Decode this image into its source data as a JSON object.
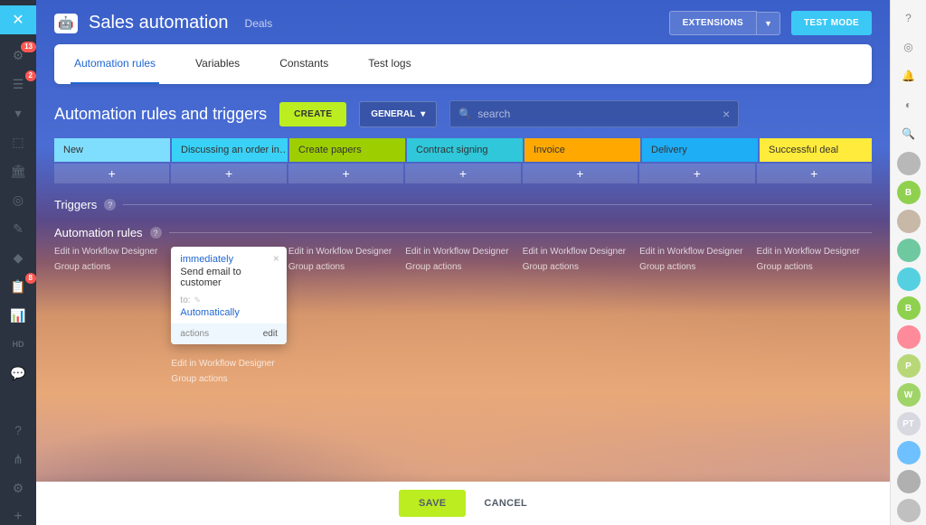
{
  "left_nav": {
    "badges": {
      "crm": "13",
      "tasks": "2",
      "reports": "8"
    }
  },
  "right_nav": {
    "avatars": [
      {
        "bg": "#b8b8b8",
        "label": ""
      },
      {
        "bg": "#8fd14f",
        "label": "B"
      },
      {
        "bg": "#c8b8a8",
        "label": ""
      },
      {
        "bg": "#6ec8a0",
        "label": ""
      },
      {
        "bg": "#55d0e0",
        "label": ""
      },
      {
        "bg": "#8fd14f",
        "label": "B"
      },
      {
        "bg": "#ff8a9a",
        "label": ""
      },
      {
        "bg": "#b8d878",
        "label": "P"
      },
      {
        "bg": "#a0d468",
        "label": "W"
      },
      {
        "bg": "#d8d8e0",
        "label": "PT"
      },
      {
        "bg": "#6ec0ff",
        "label": ""
      },
      {
        "bg": "#b0b0b0",
        "label": ""
      },
      {
        "bg": "#c0c0c0",
        "label": ""
      }
    ]
  },
  "header": {
    "title": "Sales automation",
    "subtitle": "Deals",
    "extensions": "EXTENSIONS",
    "test_mode": "TEST MODE"
  },
  "tabs": [
    {
      "label": "Automation rules",
      "active": true
    },
    {
      "label": "Variables",
      "active": false
    },
    {
      "label": "Constants",
      "active": false
    },
    {
      "label": "Test logs",
      "active": false
    }
  ],
  "toolbar": {
    "page_title": "Automation rules and triggers",
    "create": "CREATE",
    "general": "GENERAL",
    "search_placeholder": "search"
  },
  "stages": [
    {
      "label": "New",
      "bg": "#7fdefd",
      "arrow": "#7fdefd"
    },
    {
      "label": "Discussing an order in…",
      "bg": "#39d1f6",
      "arrow": "#39d1f6"
    },
    {
      "label": "Create papers",
      "bg": "#9dcf00",
      "arrow": "#9dcf00"
    },
    {
      "label": "Contract signing",
      "bg": "#2fc7d9",
      "arrow": "#2fc7d9"
    },
    {
      "label": "Invoice",
      "bg": "#ffa900",
      "arrow": "#ffa900"
    },
    {
      "label": "Delivery",
      "bg": "#1eaef5",
      "arrow": "#1eaef5"
    },
    {
      "label": "Successful deal",
      "bg": "#ffeb3b",
      "arrow": "#ffeb3b"
    }
  ],
  "sections": {
    "triggers": "Triggers",
    "rules": "Automation rules"
  },
  "col_links": {
    "edit": "Edit in Workflow Designer",
    "group": "Group actions"
  },
  "rule_card": {
    "trigger": "immediately",
    "name": "Send email to customer",
    "to_label": "to:",
    "to_value": "Automatically",
    "actions": "actions",
    "edit": "edit"
  },
  "footer": {
    "save": "SAVE",
    "cancel": "CANCEL"
  }
}
